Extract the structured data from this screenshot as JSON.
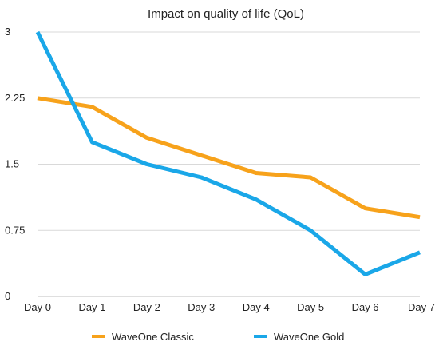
{
  "chart_data": {
    "type": "line",
    "title": "Impact on quality of life (QoL)",
    "xlabel": "",
    "ylabel": "",
    "categories": [
      "Day 0",
      "Day 1",
      "Day 2",
      "Day 3",
      "Day 4",
      "Day 5",
      "Day 6",
      "Day 7"
    ],
    "y_ticks": [
      "0",
      "0.75",
      "1.5",
      "2.25",
      "3"
    ],
    "ylim": [
      0,
      3
    ],
    "grid": true,
    "legend_position": "bottom",
    "series": [
      {
        "name": "WaveOne Classic",
        "color": "#F7A21B",
        "values": [
          2.25,
          2.15,
          1.8,
          1.6,
          1.4,
          1.35,
          1.0,
          0.9
        ]
      },
      {
        "name": "WaveOne Gold",
        "color": "#1AA7E8",
        "values": [
          3.0,
          1.75,
          1.5,
          1.35,
          1.1,
          0.75,
          0.25,
          0.5
        ]
      }
    ]
  }
}
